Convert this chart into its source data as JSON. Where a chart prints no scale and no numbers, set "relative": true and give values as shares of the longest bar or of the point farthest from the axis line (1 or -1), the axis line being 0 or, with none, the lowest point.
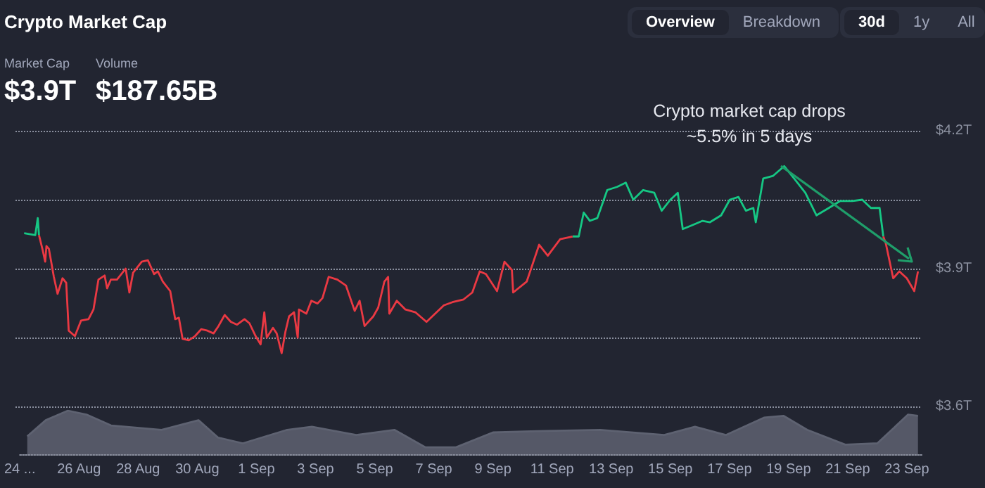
{
  "chart_data": [
    {
      "type": "line",
      "title": "Crypto Market Cap",
      "annotations": [
        "Market Cap",
        "$3.9T",
        "Volume",
        "$187.65B",
        "Overview",
        "Breakdown",
        "30d",
        "1y",
        "All",
        "Crypto market cap drops ~5.5% in 5 days"
      ],
      "xlim": [
        "--08-24T00:00",
        "--09-23T12:00"
      ],
      "ylim": [
        3.6,
        4.2
      ],
      "yticks": [
        {
          "value": 3.6,
          "label": "$3.6T"
        },
        {
          "value": 3.75,
          "label": null
        },
        {
          "value": 3.9,
          "label": "$3.9T"
        },
        {
          "value": 4.05,
          "label": null
        },
        {
          "value": 4.2,
          "label": "$4.2T"
        }
      ],
      "grid": "y",
      "tick_labels": "y",
      "marker": "none",
      "line_style": "solid",
      "series": [
        {
          "color": "#16c784",
          "x": [
            "--08-24T07:00",
            "--08-24T16:00",
            "--08-24T18:00",
            "--08-24T19:00",
            "--09-03T00:00",
            "--09-11T18:00",
            "--09-11T23:00",
            "--09-12T03:00",
            "--09-12T08:00",
            "--09-12T14:00",
            "--09-12T22:00",
            "--09-13T06:00",
            "--09-13T13:00",
            "--09-13T19:00",
            "--09-14T03:00",
            "--09-14T12:00",
            "--09-14T18:00",
            "--09-15T01:00",
            "--09-15T07:00",
            "--09-15T11:00",
            "--09-15T19:00",
            "--09-16T03:00",
            "--09-16T09:00",
            "--09-16T18:00",
            "--09-17T01:00",
            "--09-17T08:00",
            "--09-17T14:00",
            "--09-17T20:00",
            "--09-17T22:00",
            "--09-18T04:00",
            "--09-18T12:00",
            "--09-18T21:00",
            "--09-19T05:00",
            "--09-19T14:00",
            "--09-19T23:00",
            "--09-20T09:00",
            "--09-20T18:00",
            "--09-21T04:00",
            "--09-21T12:00",
            "--09-21T19:00",
            "--09-22T02:00",
            "--09-22T05:00"
          ],
          "values": [
            3.977,
            3.973,
            4.01,
            3.973,
            null,
            3.97,
            3.97,
            4.022,
            4.004,
            4.01,
            4.071,
            4.078,
            4.087,
            4.05,
            4.071,
            4.065,
            4.026,
            4.05,
            4.065,
            3.986,
            3.995,
            4.004,
            4.001,
            4.016,
            4.05,
            4.056,
            4.026,
            4.032,
            4.001,
            4.096,
            4.102,
            4.123,
            4.096,
            4.065,
            4.016,
            4.032,
            4.047,
            4.047,
            4.05,
            4.032,
            4.032,
            3.97
          ]
        },
        {
          "color": "#ea3943",
          "x": [
            "--08-24T19:00",
            "--08-24T22:00",
            "--08-25T00:00",
            "--08-25T01:00",
            "--08-25T03:00",
            "--08-25T07:00",
            "--08-25T10:00",
            "--08-25T14:00",
            "--08-25T17:00",
            "--08-25T19:00",
            "--08-26T00:00",
            "--08-26T05:00",
            "--08-26T11:00",
            "--08-26T15:00",
            "--08-26T19:00",
            "--08-27T00:00",
            "--08-27T02:00",
            "--08-27T05:00",
            "--08-27T10:00",
            "--08-27T17:00",
            "--08-27T20:00",
            "--08-27T23:00",
            "--08-28T06:00",
            "--08-28T11:00",
            "--08-28T16:00",
            "--08-28T19:00",
            "--08-28T23:00",
            "--08-29T05:00",
            "--08-29T09:00",
            "--08-29T12:00",
            "--08-29T15:00",
            "--08-29T20:00",
            "--08-30T01:00",
            "--08-30T06:00",
            "--08-30T11:00",
            "--08-30T16:00",
            "--08-30T20:00",
            "--08-31T01:00",
            "--08-31T06:00",
            "--08-31T11:00",
            "--08-31T17:00",
            "--08-31T21:00",
            "--09-01T02:00",
            "--09-01T06:00",
            "--09-01T09:00",
            "--09-01T11:00",
            "--09-01T16:00",
            "--09-01T19:00",
            "--09-01T23:00",
            "--09-02T02:00",
            "--09-02T05:00",
            "--09-02T09:00",
            "--09-02T12:00",
            "--09-02T13:00",
            "--09-02T19:00",
            "--09-02T23:00",
            "--09-03T04:00",
            "--09-03T08:00",
            "--09-03T13:00",
            "--09-03T20:00",
            "--09-04T03:00",
            "--09-04T10:00",
            "--09-04T14:00",
            "--09-04T18:00",
            "--09-05T01:00",
            "--09-05T05:00",
            "--09-05T10:00",
            "--09-05T13:00",
            "--09-05T14:00",
            "--09-05T20:00",
            "--09-06T03:00",
            "--09-06T11:00",
            "--09-06T20:00",
            "--09-07T03:00",
            "--09-07T10:00",
            "--09-07T17:00",
            "--09-08T02:00",
            "--09-08T09:00",
            "--09-08T15:00",
            "--09-08T20:00",
            "--09-09T05:00",
            "--09-09T11:00",
            "--09-09T17:00",
            "--09-09T18:00",
            "--09-10T05:00",
            "--09-10T15:00",
            "--09-10T22:00",
            "--09-11T08:00",
            "--09-11T18:00",
            "--09-17T00:00",
            "--09-22T05:00",
            "--09-22T07:00",
            "--09-22T13:00",
            "--09-22T18:00",
            "--09-23T00:00",
            "--09-23T06:00",
            "--09-23T09:00"
          ],
          "values": [
            3.973,
            3.94,
            3.915,
            3.949,
            3.943,
            3.882,
            3.845,
            3.879,
            3.869,
            3.765,
            3.753,
            3.787,
            3.79,
            3.811,
            3.876,
            3.885,
            3.857,
            3.876,
            3.876,
            3.9,
            3.848,
            3.891,
            3.915,
            3.918,
            3.888,
            3.894,
            3.872,
            3.851,
            3.79,
            3.793,
            3.747,
            3.744,
            3.753,
            3.768,
            3.765,
            3.759,
            3.775,
            3.799,
            3.784,
            3.778,
            3.79,
            3.781,
            3.753,
            3.735,
            3.805,
            3.75,
            3.771,
            3.759,
            3.716,
            3.762,
            3.796,
            3.805,
            3.75,
            3.811,
            3.802,
            3.83,
            3.824,
            3.836,
            3.882,
            3.876,
            3.863,
            3.808,
            3.83,
            3.775,
            3.796,
            3.815,
            3.872,
            3.882,
            3.802,
            3.83,
            3.811,
            3.805,
            3.784,
            3.802,
            3.82,
            3.827,
            3.833,
            3.848,
            3.894,
            3.888,
            3.851,
            3.915,
            3.897,
            3.848,
            3.872,
            3.952,
            3.928,
            3.964,
            3.97,
            null,
            3.97,
            3.955,
            3.879,
            3.894,
            3.879,
            3.851,
            3.894
          ]
        }
      ]
    },
    {
      "type": "area",
      "relative": true,
      "tick_labels": "x",
      "marker": "none",
      "xlim": [
        "--08-24T00:00",
        "--09-23T12:00"
      ],
      "xticks": [
        {
          "value": "--08-24",
          "label": "24 ..."
        },
        {
          "value": "--08-26",
          "label": "26 Aug"
        },
        {
          "value": "--08-28",
          "label": "28 Aug"
        },
        {
          "value": "--08-30",
          "label": "30 Aug"
        },
        {
          "value": "--09-01",
          "label": "1 Sep"
        },
        {
          "value": "--09-03",
          "label": "3 Sep"
        },
        {
          "value": "--09-05",
          "label": "5 Sep"
        },
        {
          "value": "--09-07",
          "label": "7 Sep"
        },
        {
          "value": "--09-09",
          "label": "9 Sep"
        },
        {
          "value": "--09-11",
          "label": "11 Sep"
        },
        {
          "value": "--09-13",
          "label": "13 Sep"
        },
        {
          "value": "--09-15",
          "label": "15 Sep"
        },
        {
          "value": "--09-17",
          "label": "17 Sep"
        },
        {
          "value": "--09-19",
          "label": "19 Sep"
        },
        {
          "value": "--09-21",
          "label": "21 Sep"
        },
        {
          "value": "--09-23",
          "label": "23 Sep"
        }
      ],
      "series": [
        {
          "color": "#5e6271",
          "x": [
            "--08-24T06:00",
            "--08-24T21:00",
            "--08-25T15:00",
            "--08-26T06:00",
            "--08-27T02:00",
            "--08-28T19:00",
            "--08-30T01:00",
            "--08-30T17:00",
            "--08-31T13:00",
            "--09-02T01:00",
            "--09-02T21:00",
            "--09-04T09:00",
            "--09-05T16:00",
            "--09-06T17:00",
            "--09-07T18:00",
            "--09-09T00:00",
            "--09-10T12:00",
            "--09-12T15:00",
            "--09-14T19:00",
            "--09-15T20:00",
            "--09-16T21:00",
            "--09-18T04:00",
            "--09-18T20:00",
            "--09-19T15:00",
            "--09-20T22:00",
            "--09-22T00:00",
            "--09-23T01:00",
            "--09-23T09:00"
          ],
          "values": [
            0.41,
            0.78,
            1,
            0.91,
            0.66,
            0.56,
            0.78,
            0.38,
            0.25,
            0.56,
            0.63,
            0.44,
            0.56,
            0.16,
            0.16,
            0.5,
            0.53,
            0.56,
            0.44,
            0.63,
            0.44,
            0.84,
            0.88,
            0.56,
            0.22,
            0.25,
            0.91,
            0.88
          ]
        }
      ]
    }
  ]
}
